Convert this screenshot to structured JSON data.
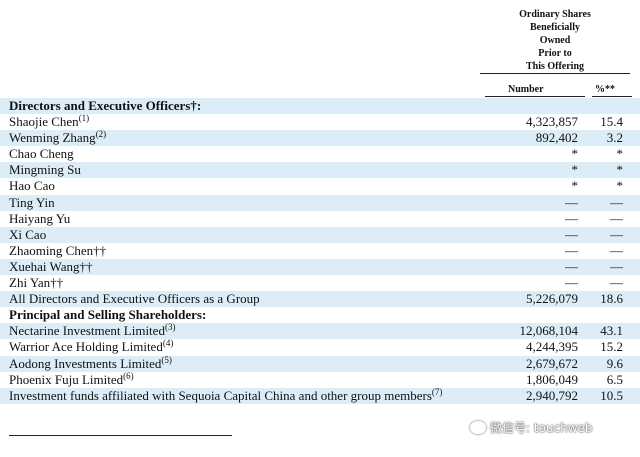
{
  "header": {
    "title_lines": [
      "Ordinary Shares",
      "Beneficially",
      "Owned",
      "Prior to",
      "This Offering"
    ],
    "col_number": "Number",
    "col_pct": "%**"
  },
  "rows": [
    {
      "name": "Directors and Executive Officers†:",
      "sup": "",
      "number": "",
      "pct": "",
      "heading": true
    },
    {
      "name": "Shaojie Chen",
      "sup": "(1)",
      "number": "4,323,857",
      "pct": "15.4"
    },
    {
      "name": "Wenming Zhang",
      "sup": "(2)",
      "number": "892,402",
      "pct": "3.2"
    },
    {
      "name": "Chao Cheng",
      "sup": "",
      "number": "*",
      "pct": "*"
    },
    {
      "name": "Mingming Su",
      "sup": "",
      "number": "*",
      "pct": "*"
    },
    {
      "name": "Hao Cao",
      "sup": "",
      "number": "*",
      "pct": "*"
    },
    {
      "name": "Ting Yin",
      "sup": "",
      "number": "—",
      "pct": "—"
    },
    {
      "name": "Haiyang Yu",
      "sup": "",
      "number": "—",
      "pct": "—"
    },
    {
      "name": "Xi Cao",
      "sup": "",
      "number": "—",
      "pct": "—"
    },
    {
      "name": "Zhaoming Chen††",
      "sup": "",
      "number": "—",
      "pct": "—"
    },
    {
      "name": "Xuehai Wang††",
      "sup": "",
      "number": "—",
      "pct": "—"
    },
    {
      "name": "Zhi Yan††",
      "sup": "",
      "number": "—",
      "pct": "—"
    },
    {
      "name": "All Directors and Executive Officers as a Group",
      "sup": "",
      "number": "5,226,079",
      "pct": "18.6"
    },
    {
      "name": "Principal and Selling Shareholders:",
      "sup": "",
      "number": "",
      "pct": "",
      "heading": true
    },
    {
      "name": "Nectarine Investment Limited",
      "sup": "(3)",
      "number": "12,068,104",
      "pct": "43.1"
    },
    {
      "name": "Warrior Ace Holding Limited",
      "sup": "(4)",
      "number": "4,244,395",
      "pct": "15.2"
    },
    {
      "name": "Aodong Investments Limited",
      "sup": "(5)",
      "number": "2,679,672",
      "pct": "9.6"
    },
    {
      "name": "Phoenix Fuju Limited",
      "sup": "(6)",
      "number": "1,806,049",
      "pct": "6.5"
    },
    {
      "name": "Investment funds affiliated with Sequoia Capital China and other group members",
      "sup": "(7)",
      "number": "2,940,792",
      "pct": "10.5"
    }
  ],
  "watermark": "微信号: touchweb"
}
